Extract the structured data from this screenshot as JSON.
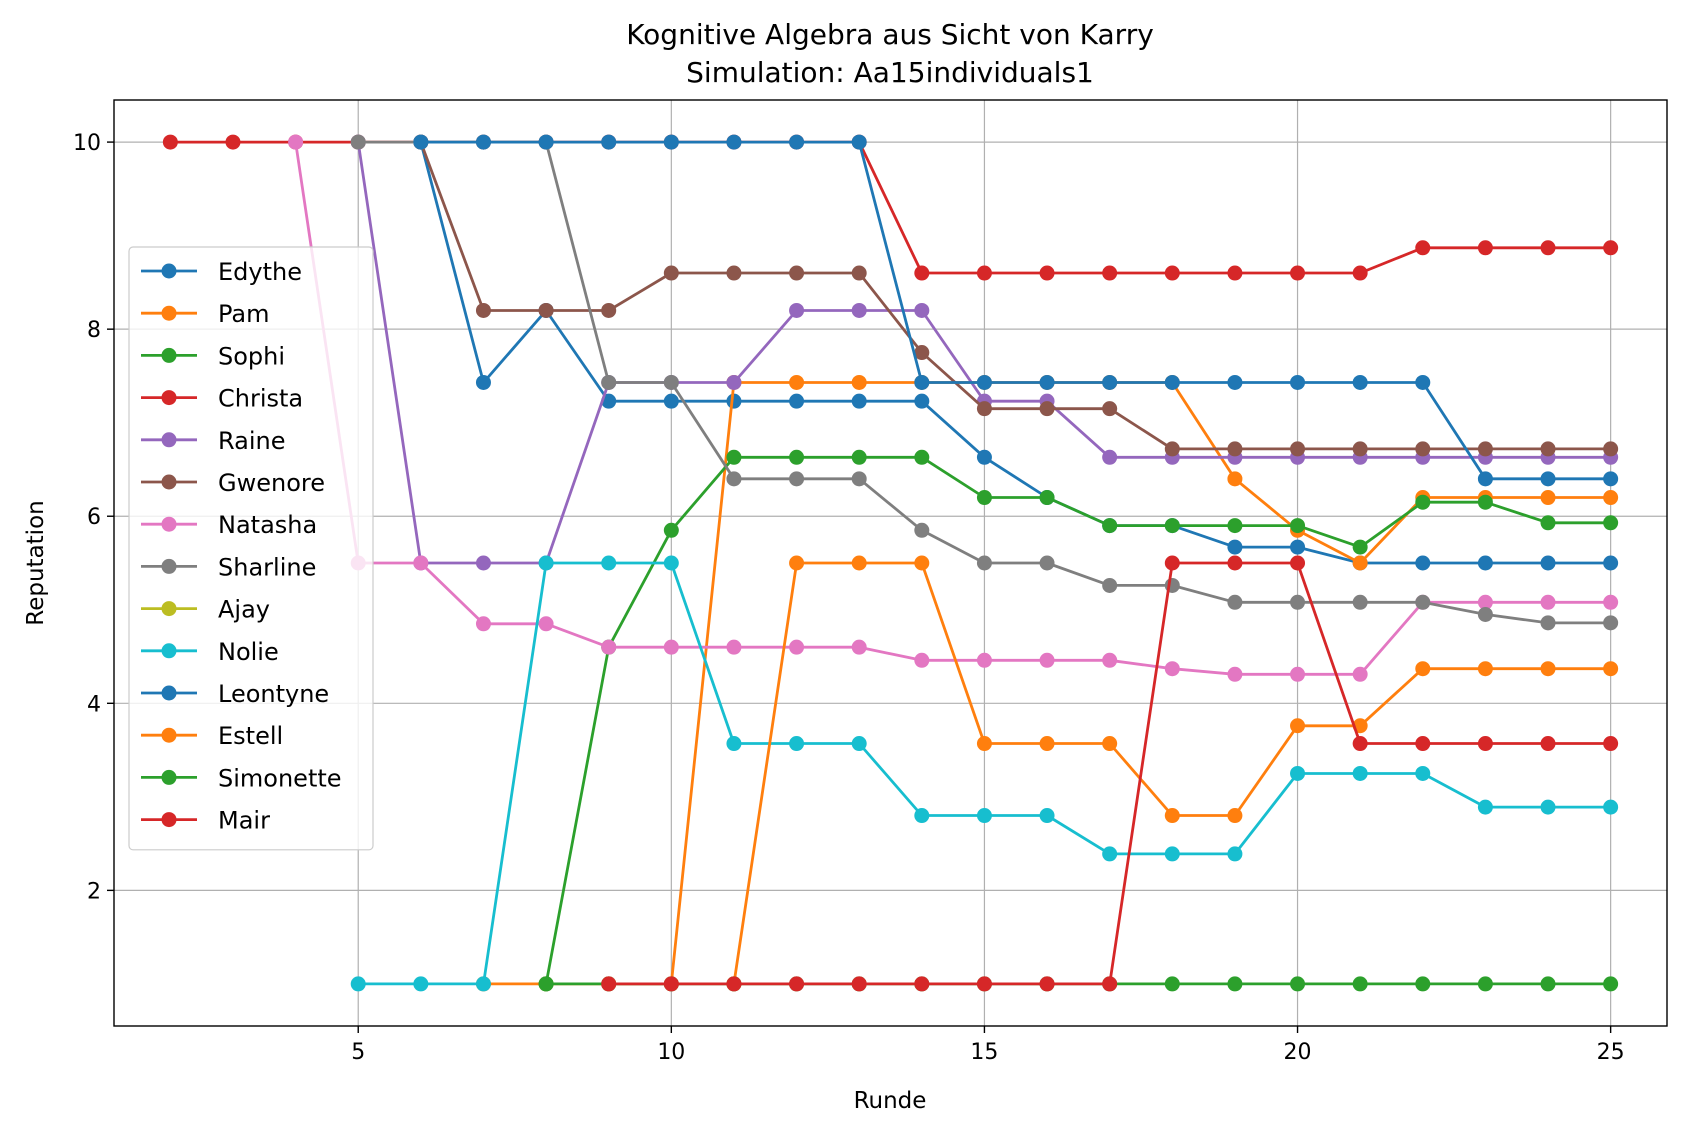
{
  "chart_data": {
    "type": "line",
    "title": "Kognitive Algebra aus Sicht von Karry",
    "subtitle": "Simulation: Aa15individuals1",
    "xlabel": "Runde",
    "ylabel": "Reputation",
    "xlim": [
      1.1,
      25.9
    ],
    "ylim": [
      0.55,
      10.45
    ],
    "xticks": [
      5,
      10,
      15,
      20,
      25
    ],
    "yticks": [
      2,
      4,
      6,
      8,
      10
    ],
    "grid": true,
    "legend_position": "center-left",
    "series": [
      {
        "name": "Edythe",
        "color": "#1f77b4",
        "points": [
          [
            6,
            10
          ],
          [
            7,
            7.43
          ],
          [
            8,
            8.2
          ],
          [
            9,
            7.23
          ],
          [
            10,
            7.23
          ],
          [
            11,
            7.23
          ],
          [
            12,
            7.23
          ],
          [
            13,
            7.23
          ],
          [
            14,
            7.23
          ],
          [
            15,
            6.63
          ],
          [
            16,
            6.2
          ],
          [
            17,
            5.9
          ],
          [
            18,
            5.9
          ],
          [
            19,
            5.67
          ],
          [
            20,
            5.67
          ],
          [
            21,
            5.5
          ],
          [
            22,
            5.5
          ],
          [
            23,
            5.5
          ],
          [
            24,
            5.5
          ],
          [
            25,
            5.5
          ]
        ]
      },
      {
        "name": "Pam",
        "color": "#ff7f0e",
        "points": [
          [
            7,
            1
          ],
          [
            8,
            1
          ],
          [
            9,
            1
          ],
          [
            10,
            1
          ],
          [
            11,
            7.43
          ],
          [
            12,
            7.43
          ],
          [
            13,
            7.43
          ],
          [
            14,
            7.43
          ],
          [
            15,
            7.43
          ],
          [
            16,
            7.43
          ],
          [
            17,
            7.43
          ],
          [
            18,
            7.43
          ],
          [
            19,
            6.4
          ],
          [
            20,
            5.85
          ],
          [
            21,
            5.5
          ],
          [
            22,
            6.2
          ],
          [
            23,
            6.2
          ],
          [
            24,
            6.2
          ],
          [
            25,
            6.2
          ]
        ]
      },
      {
        "name": "Sophi",
        "color": "#2ca02c",
        "points": [
          [
            8,
            1
          ],
          [
            9,
            4.6
          ],
          [
            10,
            5.85
          ],
          [
            11,
            6.63
          ],
          [
            12,
            6.63
          ],
          [
            13,
            6.63
          ],
          [
            14,
            6.63
          ],
          [
            15,
            6.2
          ],
          [
            16,
            6.2
          ],
          [
            17,
            5.9
          ],
          [
            18,
            5.9
          ],
          [
            19,
            5.9
          ],
          [
            20,
            5.9
          ],
          [
            21,
            5.67
          ],
          [
            22,
            6.15
          ],
          [
            23,
            6.15
          ],
          [
            24,
            5.93
          ],
          [
            25,
            5.93
          ]
        ]
      },
      {
        "name": "Christa",
        "color": "#d62728",
        "points": [
          [
            2,
            10
          ],
          [
            3,
            10
          ],
          [
            4,
            10
          ],
          [
            5,
            10
          ],
          [
            6,
            10
          ],
          [
            7,
            10
          ],
          [
            8,
            10
          ],
          [
            9,
            10
          ],
          [
            10,
            10
          ],
          [
            11,
            10
          ],
          [
            12,
            10
          ],
          [
            13,
            10
          ],
          [
            14,
            8.6
          ],
          [
            15,
            8.6
          ],
          [
            16,
            8.6
          ],
          [
            17,
            8.6
          ],
          [
            18,
            8.6
          ],
          [
            19,
            8.6
          ],
          [
            20,
            8.6
          ],
          [
            21,
            8.6
          ],
          [
            22,
            8.87
          ],
          [
            23,
            8.87
          ],
          [
            24,
            8.87
          ],
          [
            25,
            8.87
          ]
        ]
      },
      {
        "name": "Raine",
        "color": "#9467bd",
        "points": [
          [
            5,
            10
          ],
          [
            6,
            5.5
          ],
          [
            7,
            5.5
          ],
          [
            8,
            5.5
          ],
          [
            9,
            7.43
          ],
          [
            10,
            7.43
          ],
          [
            11,
            7.43
          ],
          [
            12,
            8.2
          ],
          [
            13,
            8.2
          ],
          [
            14,
            8.2
          ],
          [
            15,
            7.23
          ],
          [
            16,
            7.23
          ],
          [
            17,
            6.63
          ],
          [
            18,
            6.63
          ],
          [
            19,
            6.63
          ],
          [
            20,
            6.63
          ],
          [
            21,
            6.63
          ],
          [
            22,
            6.63
          ],
          [
            23,
            6.63
          ],
          [
            24,
            6.63
          ],
          [
            25,
            6.63
          ]
        ]
      },
      {
        "name": "Gwenore",
        "color": "#8c564b",
        "points": [
          [
            6,
            10
          ],
          [
            7,
            8.2
          ],
          [
            8,
            8.2
          ],
          [
            9,
            8.2
          ],
          [
            10,
            8.6
          ],
          [
            11,
            8.6
          ],
          [
            12,
            8.6
          ],
          [
            13,
            8.6
          ],
          [
            14,
            7.75
          ],
          [
            15,
            7.15
          ],
          [
            16,
            7.15
          ],
          [
            17,
            7.15
          ],
          [
            18,
            6.72
          ],
          [
            19,
            6.72
          ],
          [
            20,
            6.72
          ],
          [
            21,
            6.72
          ],
          [
            22,
            6.72
          ],
          [
            23,
            6.72
          ],
          [
            24,
            6.72
          ],
          [
            25,
            6.72
          ]
        ]
      },
      {
        "name": "Natasha",
        "color": "#e377c2",
        "points": [
          [
            4,
            10
          ],
          [
            5,
            5.5
          ],
          [
            6,
            5.5
          ],
          [
            7,
            4.85
          ],
          [
            8,
            4.85
          ],
          [
            9,
            4.6
          ],
          [
            10,
            4.6
          ],
          [
            11,
            4.6
          ],
          [
            12,
            4.6
          ],
          [
            13,
            4.6
          ],
          [
            14,
            4.46
          ],
          [
            15,
            4.46
          ],
          [
            16,
            4.46
          ],
          [
            17,
            4.46
          ],
          [
            18,
            4.37
          ],
          [
            19,
            4.31
          ],
          [
            20,
            4.31
          ],
          [
            21,
            4.31
          ],
          [
            22,
            5.08
          ],
          [
            23,
            5.08
          ],
          [
            24,
            5.08
          ],
          [
            25,
            5.08
          ]
        ]
      },
      {
        "name": "Sharline",
        "color": "#7f7f7f",
        "points": [
          [
            5,
            10
          ],
          [
            6,
            10
          ],
          [
            7,
            10
          ],
          [
            8,
            10
          ],
          [
            9,
            7.43
          ],
          [
            10,
            7.43
          ],
          [
            11,
            6.4
          ],
          [
            12,
            6.4
          ],
          [
            13,
            6.4
          ],
          [
            14,
            5.85
          ],
          [
            15,
            5.5
          ],
          [
            16,
            5.5
          ],
          [
            17,
            5.26
          ],
          [
            18,
            5.26
          ],
          [
            19,
            5.08
          ],
          [
            20,
            5.08
          ],
          [
            21,
            5.08
          ],
          [
            22,
            5.08
          ],
          [
            23,
            4.95
          ],
          [
            24,
            4.86
          ],
          [
            25,
            4.86
          ]
        ]
      },
      {
        "name": "Ajay",
        "color": "#bcbd22",
        "points": []
      },
      {
        "name": "Nolie",
        "color": "#17becf",
        "points": [
          [
            5,
            1
          ],
          [
            6,
            1
          ],
          [
            7,
            1
          ],
          [
            8,
            5.5
          ],
          [
            9,
            5.5
          ],
          [
            10,
            5.5
          ],
          [
            11,
            3.57
          ],
          [
            12,
            3.57
          ],
          [
            13,
            3.57
          ],
          [
            14,
            2.8
          ],
          [
            15,
            2.8
          ],
          [
            16,
            2.8
          ],
          [
            17,
            2.39
          ],
          [
            18,
            2.39
          ],
          [
            19,
            2.39
          ],
          [
            20,
            3.25
          ],
          [
            21,
            3.25
          ],
          [
            22,
            3.25
          ],
          [
            23,
            2.89
          ],
          [
            24,
            2.89
          ],
          [
            25,
            2.89
          ]
        ]
      },
      {
        "name": "Leontyne",
        "color": "#1f77b4",
        "points": [
          [
            6,
            10
          ],
          [
            7,
            10
          ],
          [
            8,
            10
          ],
          [
            9,
            10
          ],
          [
            10,
            10
          ],
          [
            11,
            10
          ],
          [
            12,
            10
          ],
          [
            13,
            10
          ],
          [
            14,
            7.43
          ],
          [
            15,
            7.43
          ],
          [
            16,
            7.43
          ],
          [
            17,
            7.43
          ],
          [
            18,
            7.43
          ],
          [
            19,
            7.43
          ],
          [
            20,
            7.43
          ],
          [
            21,
            7.43
          ],
          [
            22,
            7.43
          ],
          [
            23,
            6.4
          ],
          [
            24,
            6.4
          ],
          [
            25,
            6.4
          ]
        ]
      },
      {
        "name": "Estell",
        "color": "#ff7f0e",
        "points": [
          [
            11,
            1
          ],
          [
            12,
            5.5
          ],
          [
            13,
            5.5
          ],
          [
            14,
            5.5
          ],
          [
            15,
            3.57
          ],
          [
            16,
            3.57
          ],
          [
            17,
            3.57
          ],
          [
            18,
            2.8
          ],
          [
            19,
            2.8
          ],
          [
            20,
            3.76
          ],
          [
            21,
            3.76
          ],
          [
            22,
            4.37
          ],
          [
            23,
            4.37
          ],
          [
            24,
            4.37
          ],
          [
            25,
            4.37
          ]
        ]
      },
      {
        "name": "Simonette",
        "color": "#2ca02c",
        "points": [
          [
            8,
            1
          ],
          [
            9,
            1
          ],
          [
            10,
            1
          ],
          [
            11,
            1
          ],
          [
            12,
            1
          ],
          [
            13,
            1
          ],
          [
            14,
            1
          ],
          [
            15,
            1
          ],
          [
            16,
            1
          ],
          [
            17,
            1
          ],
          [
            18,
            1
          ],
          [
            19,
            1
          ],
          [
            20,
            1
          ],
          [
            21,
            1
          ],
          [
            22,
            1
          ],
          [
            23,
            1
          ],
          [
            24,
            1
          ],
          [
            25,
            1
          ]
        ]
      },
      {
        "name": "Mair",
        "color": "#d62728",
        "points": [
          [
            9,
            1
          ],
          [
            10,
            1
          ],
          [
            11,
            1
          ],
          [
            12,
            1
          ],
          [
            13,
            1
          ],
          [
            14,
            1
          ],
          [
            15,
            1
          ],
          [
            16,
            1
          ],
          [
            17,
            1
          ],
          [
            18,
            5.5
          ],
          [
            19,
            5.5
          ],
          [
            20,
            5.5
          ],
          [
            21,
            3.57
          ],
          [
            22,
            3.57
          ],
          [
            23,
            3.57
          ],
          [
            24,
            3.57
          ],
          [
            25,
            3.57
          ]
        ]
      }
    ]
  }
}
